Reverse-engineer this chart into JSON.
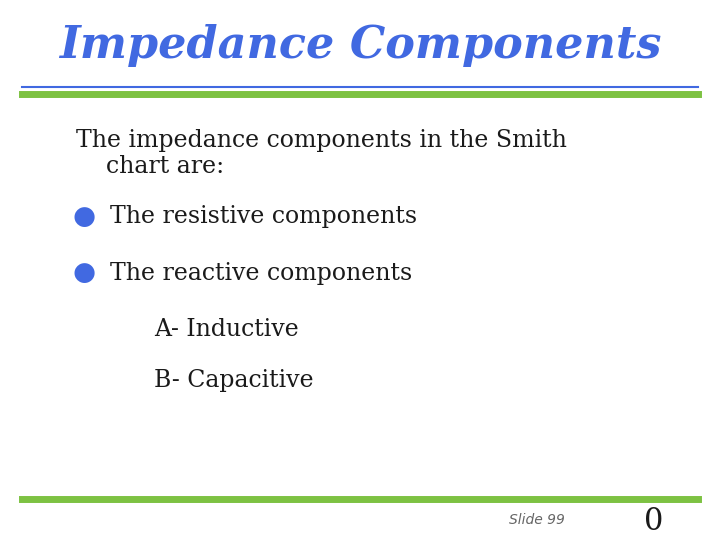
{
  "title": "Impedance Components",
  "title_color": "#4169E1",
  "title_fontsize": 32,
  "title_style": "italic",
  "title_weight": "bold",
  "bg_color": "#FFFFFF",
  "top_line_color_green": "#7DC242",
  "top_line_color_blue": "#4169E1",
  "bottom_line_color": "#7DC242",
  "body_text_color": "#1a1a1a",
  "body_fontsize": 17,
  "bullet_color": "#4169E1",
  "bullets": [
    "The resistive components",
    "The reactive components"
  ],
  "sub_bullets": [
    "A- Inductive",
    "B- Capacitive"
  ],
  "slide_label": "Slide 99",
  "slide_number": "0",
  "slide_label_fontsize": 10,
  "slide_number_fontsize": 22
}
